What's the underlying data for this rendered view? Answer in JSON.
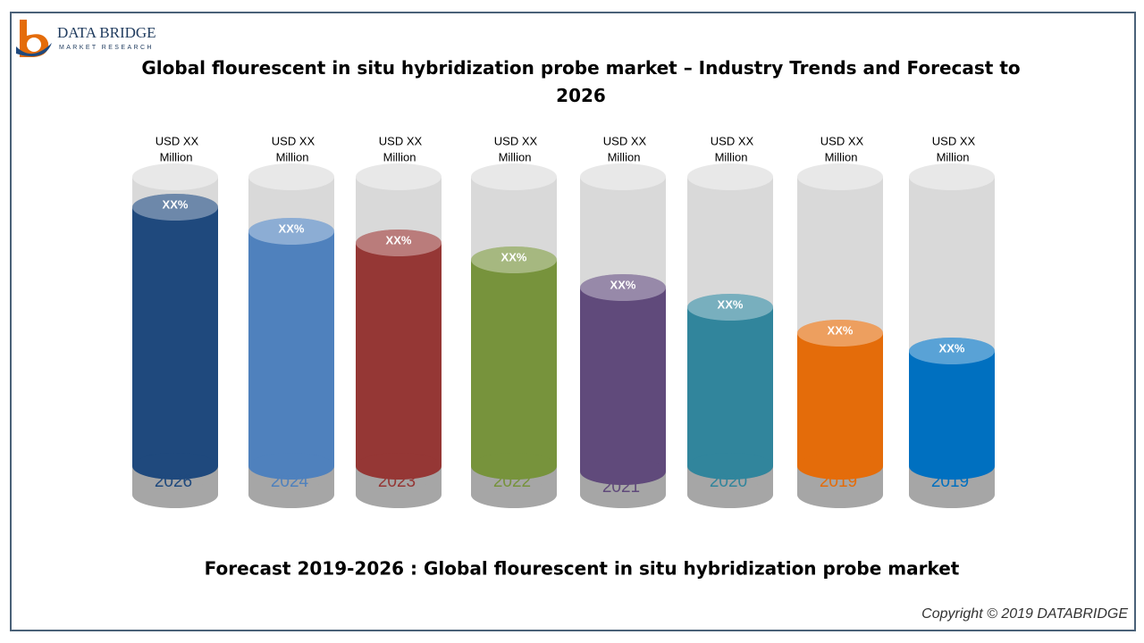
{
  "header": {
    "logo_name": "DATA BRIDGE",
    "logo_sub": "MARKET RESEARCH"
  },
  "title": "Global flourescent in situ hybridization probe market   – Industry Trends and Forecast to 2026",
  "items": [
    {
      "usd": "USD  XX",
      "unit": "Million",
      "percent": "XX%",
      "year": "2026",
      "color": "#1f497d"
    },
    {
      "usd": "USD  XX",
      "unit": "Million",
      "percent": "XX%",
      "year": "2024",
      "color": "#4f81bd"
    },
    {
      "usd": "USD  XX",
      "unit": "Million",
      "percent": "XX%",
      "year": "2023",
      "color": "#953735"
    },
    {
      "usd": "USD XX",
      "unit": "Million",
      "percent": "XX%",
      "year": "2022",
      "color": "#77933c"
    },
    {
      "usd": "USD  XX",
      "unit": "Million",
      "percent": "XX%",
      "year": "2021",
      "color": "#604a7b"
    },
    {
      "usd": "USD  XX",
      "unit": "Million",
      "percent": "XX%",
      "year": "2020",
      "color": "#31859c"
    },
    {
      "usd": "USD  XX",
      "unit": "Million",
      "percent": "XX%",
      "year": "2019",
      "color": "#e46c0a"
    },
    {
      "usd": "USD  XX",
      "unit": "Million",
      "percent": "XX%",
      "year": "2019",
      "color": "#0070c0"
    }
  ],
  "footer": "Forecast 2019-2026 : Global flourescent in situ hybridization probe market",
  "copyright": "Copyright © 2019 DATABRIDGE"
}
